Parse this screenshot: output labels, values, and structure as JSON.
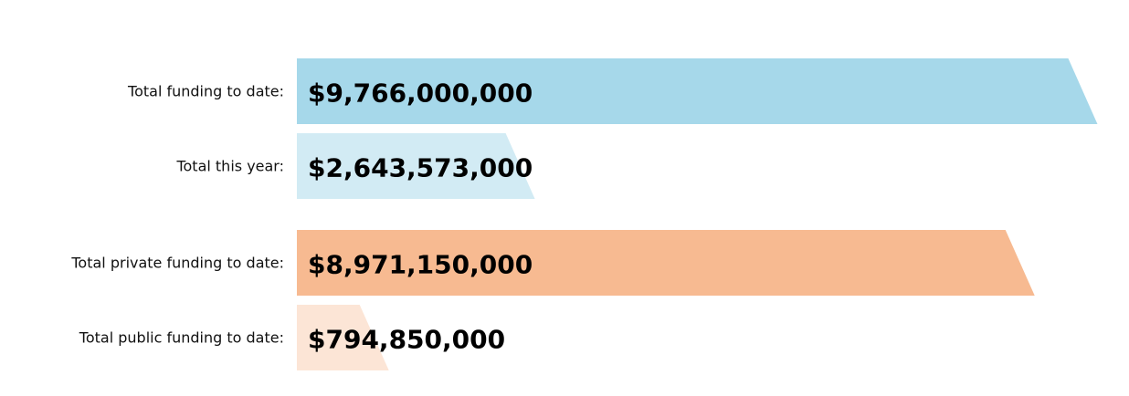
{
  "chart_data": {
    "type": "bar",
    "orientation": "horizontal",
    "categories": [
      "Total funding to date:",
      "Total this year:",
      "Total private funding to date:",
      "Total public funding to date:"
    ],
    "values": [
      9766000000,
      2643573000,
      8971150000,
      794850000
    ],
    "value_labels": [
      "$9,766,000,000",
      "$2,643,573,000",
      "$8,971,150,000",
      "$794,850,000"
    ],
    "colors": [
      "#a6d8ea",
      "#d2ebf4",
      "#f7ba91",
      "#fce5d6"
    ],
    "title": "",
    "xlabel": "",
    "ylabel": "",
    "xlim": [
      0,
      10200000000
    ],
    "grid": false,
    "legend": "none"
  }
}
